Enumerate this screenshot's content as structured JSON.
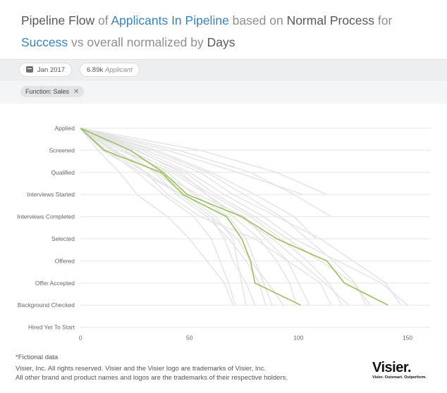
{
  "header": {
    "title_parts": [
      {
        "text": "Pipeline Flow",
        "style": "kw"
      },
      {
        "text": "of",
        "style": "plain"
      },
      {
        "text": "Applicants In Pipeline",
        "style": "metric"
      },
      {
        "text": "based on",
        "style": "plain"
      },
      {
        "text": "Normal Process",
        "style": "kw"
      },
      {
        "text": "for",
        "style": "plain"
      },
      {
        "text": "Success",
        "style": "metric"
      },
      {
        "text": "vs overall normalized by",
        "style": "plain"
      },
      {
        "text": "Days",
        "style": "kw"
      }
    ]
  },
  "filters": {
    "date": "Jan 2017",
    "count_value": "6.89k",
    "count_unit": "Applicant",
    "chip": "Function: Sales"
  },
  "colors": {
    "highlight": "#9bbf5e",
    "background_lines": "#e3e3e3",
    "grid": "#e6e6e6"
  },
  "chart_data": {
    "type": "line",
    "y_categories": [
      "Applied",
      "Screened",
      "Qualified",
      "Interviews Started",
      "Interviews Completed",
      "Selected",
      "Offered",
      "Offer Accepted",
      "Background Checked",
      "Hired Yet To Start"
    ],
    "x_ticks": [
      0,
      50,
      100,
      150
    ],
    "xlim": [
      0,
      160
    ],
    "grid": true,
    "highlighted_series": [
      {
        "x": [
          0,
          11,
          37,
          47,
          67,
          74,
          78,
          80,
          101
        ]
      },
      {
        "x": [
          0,
          23,
          38,
          49,
          74,
          90,
          113,
          121,
          141
        ]
      }
    ],
    "background_series": [
      {
        "x": [
          0,
          15,
          35,
          48,
          62,
          70,
          72,
          74,
          76
        ]
      },
      {
        "x": [
          0,
          20,
          40,
          52,
          68,
          76,
          80,
          84,
          88
        ]
      },
      {
        "x": [
          0,
          10,
          28,
          46,
          60,
          72,
          78,
          86,
          93
        ]
      },
      {
        "x": [
          0,
          12,
          30,
          40,
          55,
          80,
          95,
          110,
          115
        ]
      },
      {
        "x": [
          0,
          30,
          55,
          70,
          90,
          110,
          125,
          140,
          147
        ]
      },
      {
        "x": [
          0,
          25,
          48,
          62,
          80,
          95,
          110,
          125,
          133
        ]
      },
      {
        "x": [
          0,
          8,
          18,
          26,
          40,
          50,
          58,
          66,
          70
        ]
      },
      {
        "x": [
          0,
          14,
          36,
          54,
          75,
          85,
          95,
          100,
          105
        ]
      },
      {
        "x": [
          0,
          40,
          72,
          102
        ]
      },
      {
        "x": [
          0,
          55,
          90,
          113
        ]
      },
      {
        "x": [
          0,
          45,
          78,
          98,
          115
        ]
      },
      {
        "x": [
          0,
          35,
          60,
          80,
          98,
          108
        ]
      },
      {
        "x": [
          0,
          18,
          42,
          58,
          73,
          88,
          100,
          112,
          123
        ]
      },
      {
        "x": [
          0,
          22,
          44,
          60,
          78,
          92,
          104,
          114,
          120
        ]
      },
      {
        "x": [
          0,
          16,
          30,
          46,
          60,
          66,
          70,
          76,
          80
        ]
      },
      {
        "x": [
          0,
          28,
          50,
          66,
          84,
          98,
          118,
          138,
          150
        ]
      },
      {
        "x": [
          0,
          12,
          26,
          38,
          52,
          60,
          64,
          68,
          71
        ]
      },
      {
        "x": [
          0,
          33,
          58,
          75,
          92,
          104,
          116,
          126,
          131
        ]
      },
      {
        "x": [
          0,
          20,
          34,
          44,
          58,
          68,
          76,
          82,
          85
        ]
      },
      {
        "x": [
          0,
          26,
          46,
          58,
          70,
          82,
          90,
          96,
          99
        ]
      }
    ]
  },
  "footer": {
    "note": "*Fictional data",
    "copyright": "Visier, Inc. All rights reserved. Visier and the Visier logo are trademarks of Visier, Inc.",
    "trademarks": "All other brand and product names and logos are the trademarks of their respective holders.",
    "logo_word": "Visier.",
    "logo_tagline": "Visier. Outsmart. Outperform."
  }
}
